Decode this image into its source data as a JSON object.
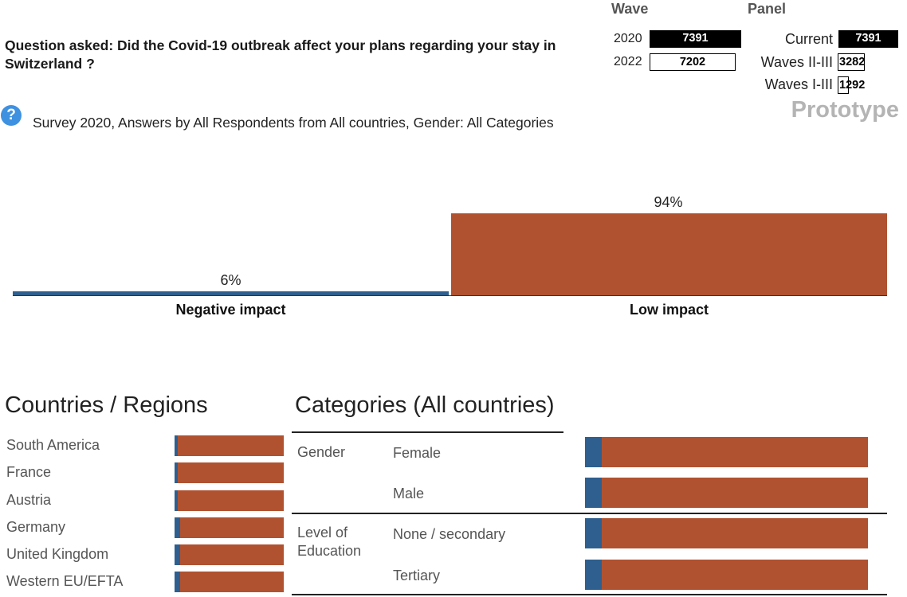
{
  "header": {
    "question": "Question asked: Did the Covid-19 outbreak affect your plans regarding your stay in Switzerland ?",
    "wave_label": "Wave",
    "panel_label": "Panel",
    "waves": [
      {
        "year": "2020",
        "count": "7391",
        "selected": true
      },
      {
        "year": "2022",
        "count": "7202",
        "selected": false
      }
    ],
    "panels": [
      {
        "label": "Current",
        "count": "7391",
        "selected": true
      },
      {
        "label": "Waves II-III",
        "count": "3282",
        "selected": false
      },
      {
        "label": "Waves I-III",
        "count": "1292",
        "selected": false
      }
    ],
    "prototype": "Prototype"
  },
  "help_icon": "?",
  "subtitle": "Survey 2020, Answers by All Respondents from All countries, Gender: All Categories",
  "colors": {
    "negative": "#2e5f8e",
    "low": "#b05230",
    "rule": "#222222"
  },
  "chart_data": {
    "type": "bar",
    "categories": [
      "Negative impact",
      "Low impact"
    ],
    "values": [
      6,
      94
    ],
    "value_labels": [
      "6%",
      "94%"
    ],
    "ylim": [
      0,
      100
    ]
  },
  "countries": {
    "title": "Countries / Regions",
    "items": [
      {
        "name": "South America",
        "negative": 3
      },
      {
        "name": "France",
        "negative": 3
      },
      {
        "name": "Austria",
        "negative": 3
      },
      {
        "name": "Germany",
        "negative": 5
      },
      {
        "name": "United Kingdom",
        "negative": 5
      },
      {
        "name": "Western EU/EFTA",
        "negative": 5
      }
    ]
  },
  "categories": {
    "title": "Categories (All countries)",
    "groups": [
      {
        "name": "Gender",
        "items": [
          {
            "name": "Female",
            "negative": 6
          },
          {
            "name": "Male",
            "negative": 6
          }
        ]
      },
      {
        "name": "Level of Education",
        "items": [
          {
            "name": "None / secondary",
            "negative": 6
          },
          {
            "name": "Tertiary",
            "negative": 6
          }
        ]
      }
    ]
  }
}
